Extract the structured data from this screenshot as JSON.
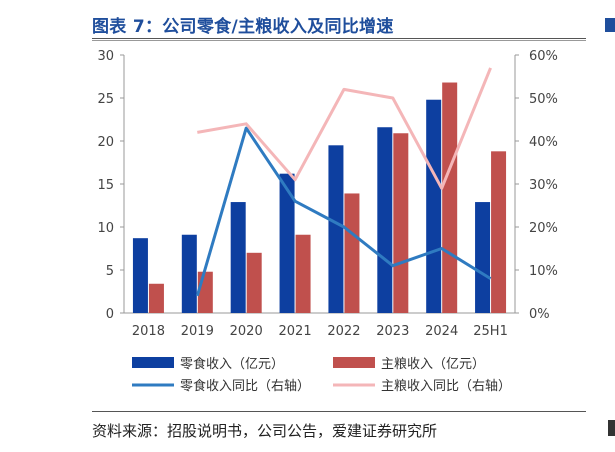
{
  "title": "图表 7：公司零食/主粮收入及同比增速",
  "source": "资料来源：招股说明书，公司公告，爱建证券研究所",
  "colors": {
    "title": "#1f4e9c",
    "bar_snack": "#0d3fa0",
    "bar_food": "#c0504d",
    "line_snack": "#2f7bc1",
    "line_food": "#f4b6b8"
  },
  "chart_data": {
    "type": "bar",
    "categories": [
      "2018",
      "2019",
      "2020",
      "2021",
      "2022",
      "2023",
      "2024",
      "25H1"
    ],
    "series": [
      {
        "name": "零食收入（亿元）",
        "type": "bar",
        "axis": "left",
        "values": [
          8.7,
          9.1,
          12.9,
          16.2,
          19.5,
          21.6,
          24.8,
          12.9
        ]
      },
      {
        "name": "主粮收入（亿元）",
        "type": "bar",
        "axis": "left",
        "values": [
          3.4,
          4.8,
          7.0,
          9.1,
          13.9,
          20.9,
          26.8,
          18.8
        ]
      },
      {
        "name": "零食收入同比（右轴）",
        "type": "line",
        "axis": "right",
        "values": [
          null,
          4,
          43,
          26,
          20,
          11,
          15,
          8
        ]
      },
      {
        "name": "主粮收入同比（右轴）",
        "type": "line",
        "axis": "right",
        "values": [
          null,
          42,
          44,
          31,
          52,
          50,
          29,
          57
        ]
      }
    ],
    "left_axis": {
      "min": 0,
      "max": 30,
      "ticks": [
        "0",
        "5",
        "10",
        "15",
        "20",
        "25",
        "30"
      ]
    },
    "right_axis": {
      "min": 0,
      "max": 60,
      "ticks": [
        "0%",
        "10%",
        "20%",
        "30%",
        "40%",
        "50%",
        "60%"
      ]
    },
    "grid": false,
    "legend_position": "bottom"
  }
}
